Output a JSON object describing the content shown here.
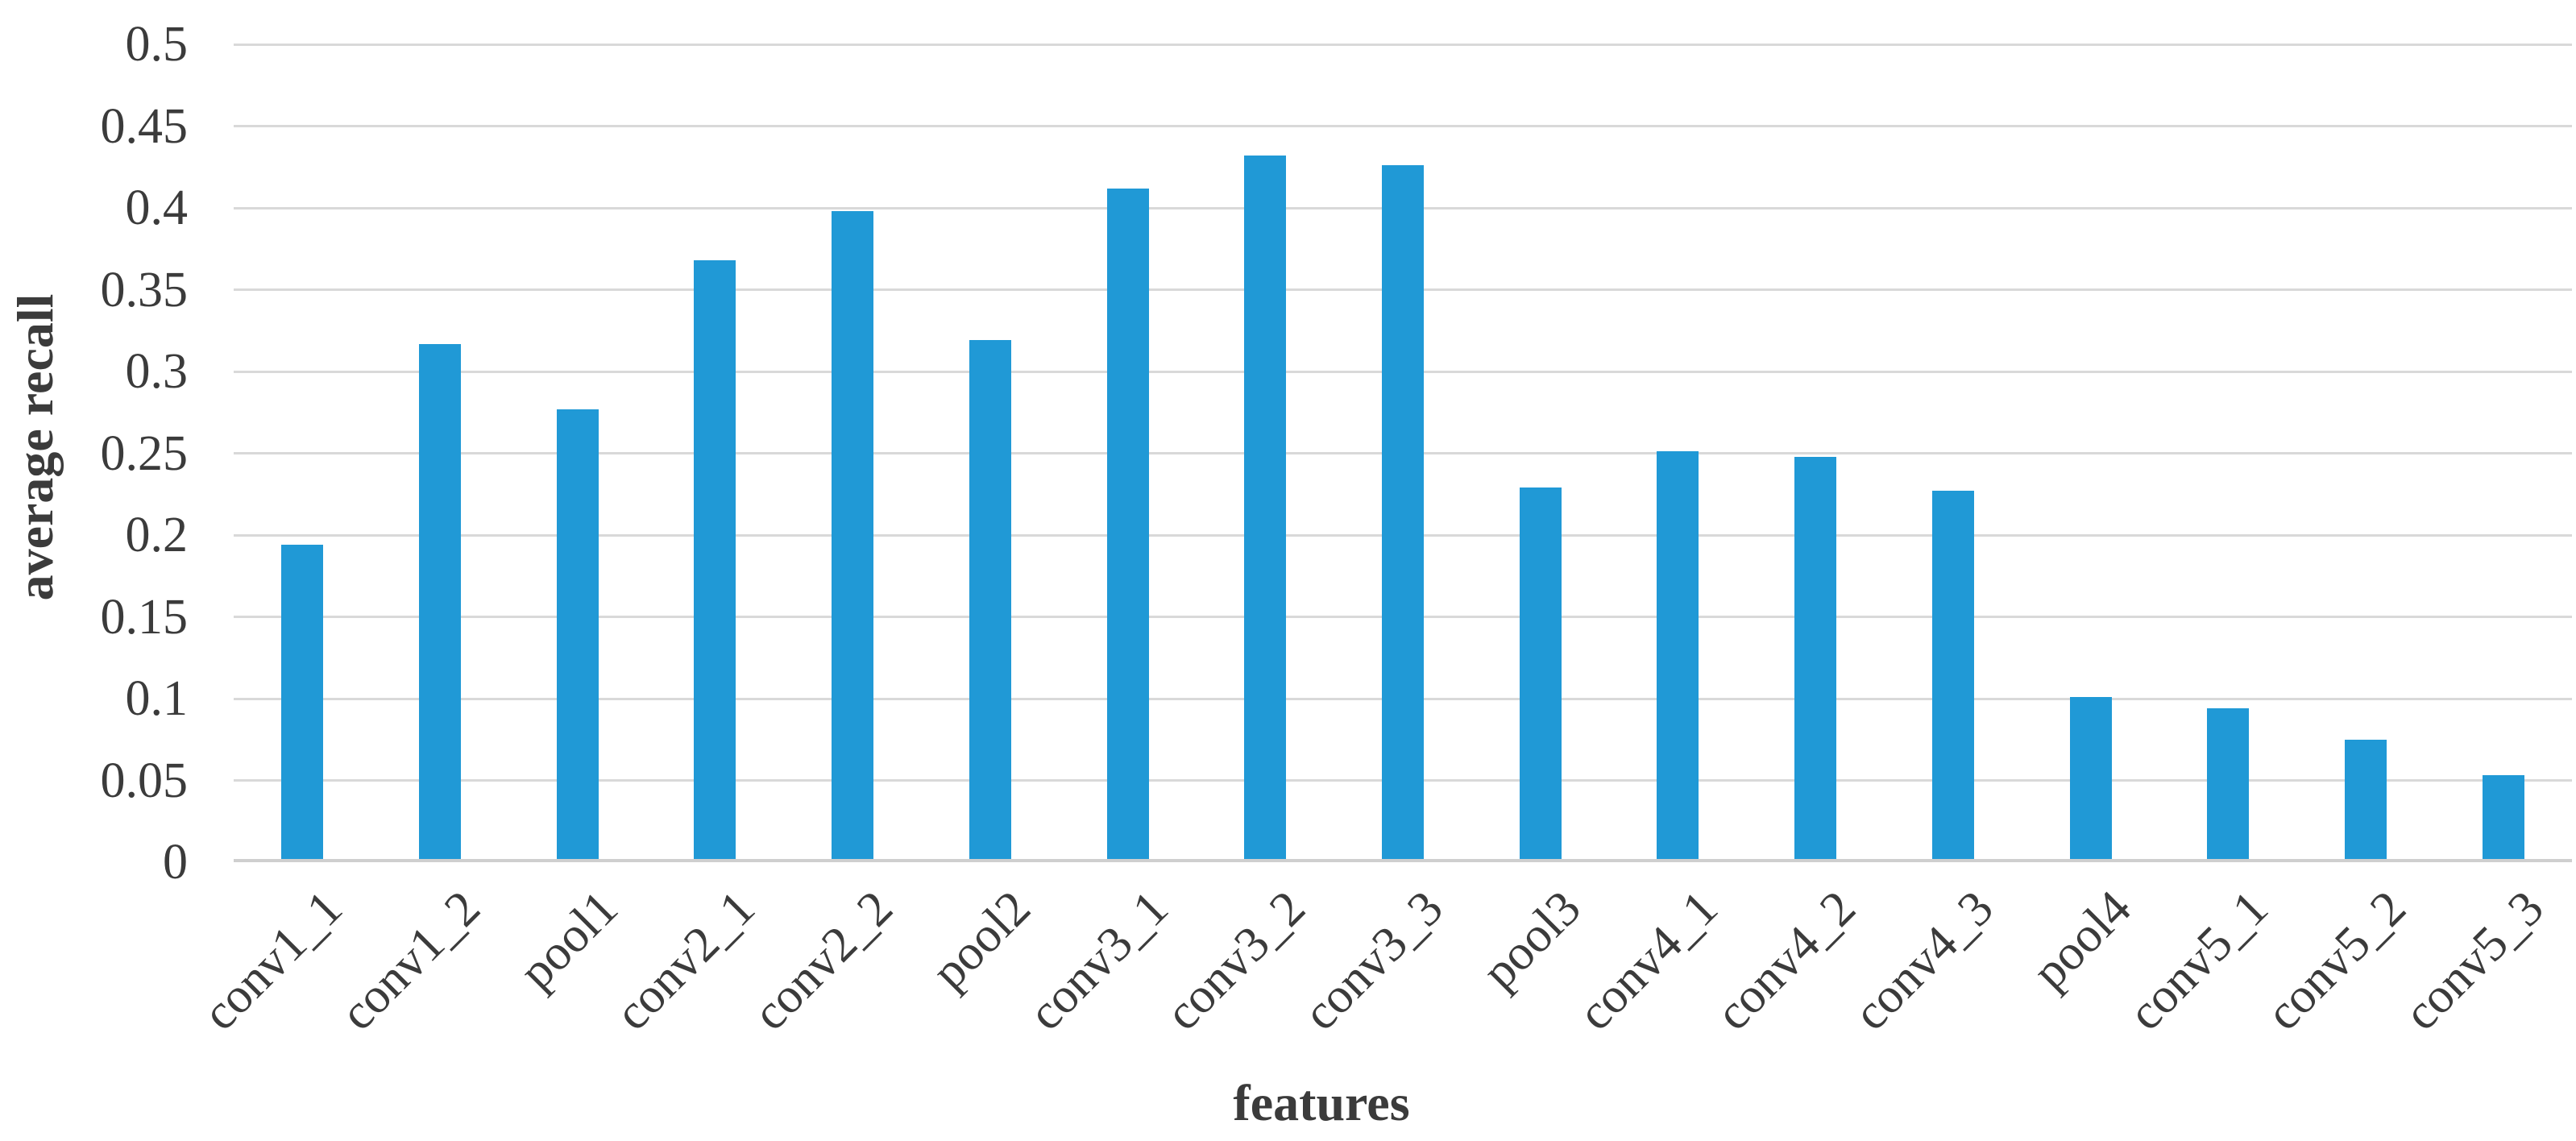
{
  "chart_data": {
    "type": "bar",
    "title": "",
    "xlabel": "features",
    "ylabel": "average recall",
    "categories": [
      "conv1_1",
      "conv1_2",
      "pool1",
      "conv2_1",
      "conv2_2",
      "pool2",
      "conv3_1",
      "conv3_2",
      "conv3_3",
      "pool3",
      "conv4_1",
      "conv4_2",
      "conv4_3",
      "pool4",
      "conv5_1",
      "conv5_2",
      "conv5_3"
    ],
    "values": [
      0.194,
      0.317,
      0.277,
      0.368,
      0.398,
      0.319,
      0.412,
      0.432,
      0.426,
      0.229,
      0.251,
      0.248,
      0.227,
      0.101,
      0.094,
      0.075,
      0.053
    ],
    "ylim": [
      0,
      0.5
    ],
    "ytick_step": 0.05,
    "ytick_labels": [
      "0",
      "0.05",
      "0.1",
      "0.15",
      "0.2",
      "0.25",
      "0.3",
      "0.35",
      "0.4",
      "0.45",
      "0.5"
    ],
    "grid": true,
    "legend": "none",
    "colors": {
      "bar": "#2099d6",
      "gridline": "#d9d9d9",
      "axis_line": "#cfcfcf",
      "text": "#3b3b3b"
    }
  }
}
